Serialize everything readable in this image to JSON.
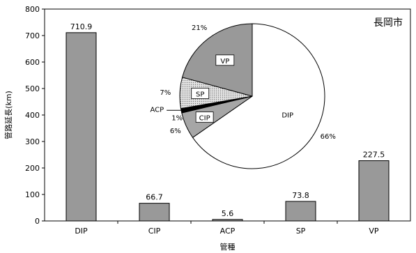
{
  "chart_data": [
    {
      "type": "bar",
      "categories": [
        "DIP",
        "CIP",
        "ACP",
        "SP",
        "VP"
      ],
      "values": [
        710.9,
        66.7,
        5.6,
        73.8,
        227.5
      ],
      "value_labels": [
        "710.9",
        "66.7",
        "5.6",
        "73.8",
        "227.5"
      ],
      "xlabel": "管種",
      "ylabel": "管路延長(km)",
      "ylim": [
        0,
        800
      ],
      "yticks": [
        0,
        100,
        200,
        300,
        400,
        500,
        600,
        700,
        800
      ],
      "grid": false,
      "annotation": "長岡市",
      "colors": {
        "bar": "#999999",
        "bar_stroke": "#000000"
      }
    },
    {
      "type": "pie",
      "slices": [
        {
          "label": "DIP",
          "value": 66,
          "pct_label": "66%",
          "fill": "#ffffff"
        },
        {
          "label": "CIP",
          "value": 6,
          "pct_label": "6%",
          "fill": "#a6a6a6"
        },
        {
          "label": "ACP",
          "value": 1,
          "pct_label": "1%",
          "fill": "#000000"
        },
        {
          "label": "SP",
          "value": 7,
          "pct_label": "7%",
          "fill": "#d4d4d4"
        },
        {
          "label": "VP",
          "value": 21,
          "pct_label": "21%",
          "fill": "#999999"
        }
      ]
    }
  ]
}
